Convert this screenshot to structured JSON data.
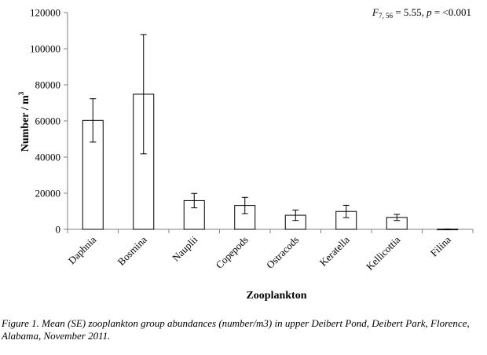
{
  "chart_data": {
    "type": "bar",
    "categories": [
      "Daphnia",
      "Bosmina",
      "Nauplii",
      "Copepods",
      "Ostracods",
      "Keratella",
      "Kellicottia",
      "Filina"
    ],
    "values": [
      60300,
      74800,
      15900,
      13200,
      7800,
      9900,
      6600,
      80
    ],
    "errors": [
      12000,
      33000,
      4000,
      4500,
      2900,
      3400,
      1700,
      80
    ],
    "xlabel": "Zooplankton",
    "ylabel": "Number / m3",
    "ylabel_main": "Number / m",
    "ylabel_sup": "3",
    "ylim": [
      0,
      120000
    ],
    "yticks": [
      "0",
      "20000",
      "40000",
      "60000",
      "80000",
      "100000",
      "120000"
    ],
    "grid": false,
    "annotation": {
      "F": "F",
      "F_sub": "7, 56",
      "mid": " = 5.55, ",
      "p": "p",
      "tail": " = <0.001"
    },
    "bar_fill": "#ffffff",
    "bar_stroke": "#000000"
  },
  "caption": "Figure 1. Mean (SE) zooplankton group abundances (number/m3) in upper Deibert Pond, Deibert Park, Florence, Alabama, November 2011."
}
